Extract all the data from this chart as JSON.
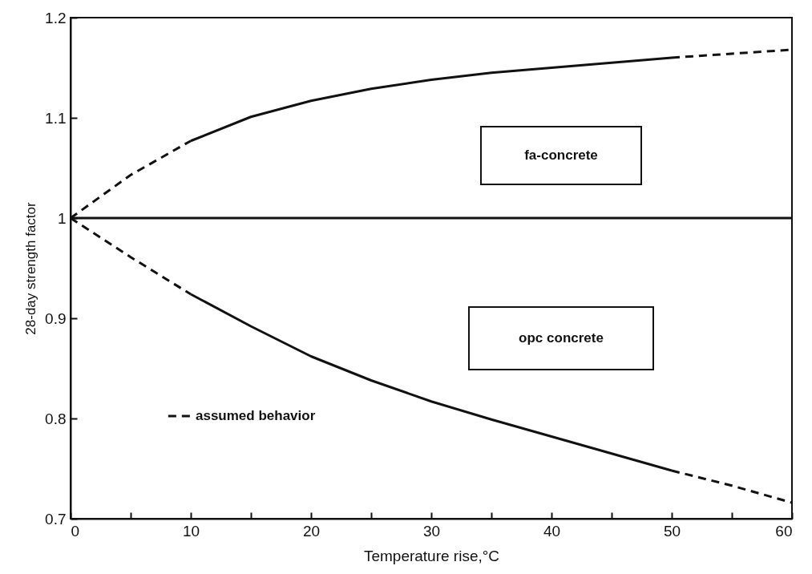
{
  "chart_data": {
    "type": "line",
    "xlabel": "Temperature rise,°C",
    "ylabel": "28-day strength factor",
    "xlim": [
      0,
      60
    ],
    "xticks": [
      0,
      {
        "value": 5,
        "label": null
      },
      10,
      {
        "value": 15,
        "label": null
      },
      20,
      {
        "value": 25,
        "label": null
      },
      30,
      {
        "value": 35,
        "label": null
      },
      40,
      {
        "value": 45,
        "label": null
      },
      50,
      {
        "value": 55,
        "label": null
      },
      60
    ],
    "ylim": [
      0.7,
      1.2
    ],
    "yticks": [
      0.7,
      0.8,
      0.9,
      1,
      1.1,
      1.2
    ],
    "series": [
      {
        "color": "#111111",
        "line_style": "solid",
        "x": [
          10,
          15,
          20,
          25,
          30,
          35,
          40,
          45,
          50
        ],
        "values": [
          1.077,
          1.101,
          1.117,
          1.129,
          1.138,
          1.145,
          1.15,
          1.155,
          1.16
        ]
      },
      {
        "color": "#111111",
        "line_style": "solid",
        "x": [
          10,
          15,
          20,
          25,
          30,
          35,
          40,
          45,
          50
        ],
        "values": [
          0.924,
          0.892,
          0.862,
          0.838,
          0.817,
          0.799,
          0.782,
          0.765,
          0.748
        ]
      },
      {
        "name": "assumed behavior",
        "color": "#111111",
        "line_style": "dashed",
        "x": [
          0,
          5,
          10,
          30,
          50,
          55,
          60
        ],
        "values": [
          1,
          1.043,
          1.077,
          null,
          1.16,
          1.164,
          1.168
        ]
      },
      {
        "color": "#111111",
        "line_style": "dashed",
        "x": [
          0,
          5,
          10,
          30,
          50,
          55,
          60
        ],
        "values": [
          1,
          0.961,
          0.924,
          null,
          0.748,
          0.733,
          0.716
        ]
      }
    ],
    "ref_lines": [
      {
        "axis": "y",
        "value": 1,
        "color": "#111111"
      }
    ],
    "annotations": [
      "fa-concrete",
      "opc concrete"
    ],
    "legend": "bottom left",
    "marker": "none"
  }
}
